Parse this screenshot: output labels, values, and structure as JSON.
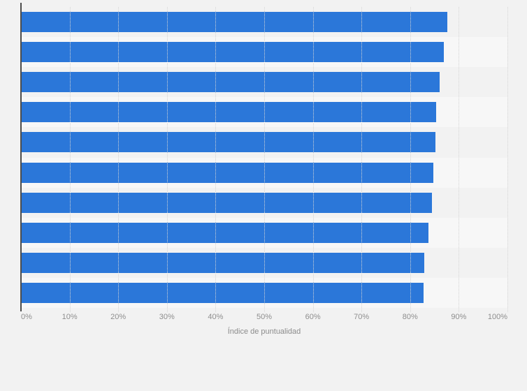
{
  "chart_data": {
    "type": "bar",
    "orientation": "horizontal",
    "title": "",
    "categories": [
      "",
      "",
      "",
      "",
      "",
      "",
      "",
      "",
      "",
      ""
    ],
    "values": [
      87.7,
      86.9,
      86.0,
      85.3,
      85.2,
      84.8,
      84.5,
      83.8,
      82.9,
      82.8
    ],
    "unit": "%",
    "xlabel": "Índice de puntualidad",
    "ylabel": "",
    "xlim": [
      0,
      100
    ],
    "x_tick_step": 10,
    "x_tick_labels": [
      "0%",
      "10%",
      "20%",
      "30%",
      "40%",
      "50%",
      "60%",
      "70%",
      "80%",
      "90%",
      "100%"
    ],
    "grid": "vertical-dotted",
    "legend": "none",
    "category_labels_visible": false
  },
  "colors": {
    "background": "#f2f2f2",
    "stripe_odd": "#f2f2f2",
    "stripe_even": "#f7f7f7",
    "bar": "#2b77d9",
    "axis_line": "#4d4d4d",
    "gridline": "#d5d5d5",
    "tick_text": "#8e8e8e",
    "axis_title_text": "#8c8c8c"
  }
}
